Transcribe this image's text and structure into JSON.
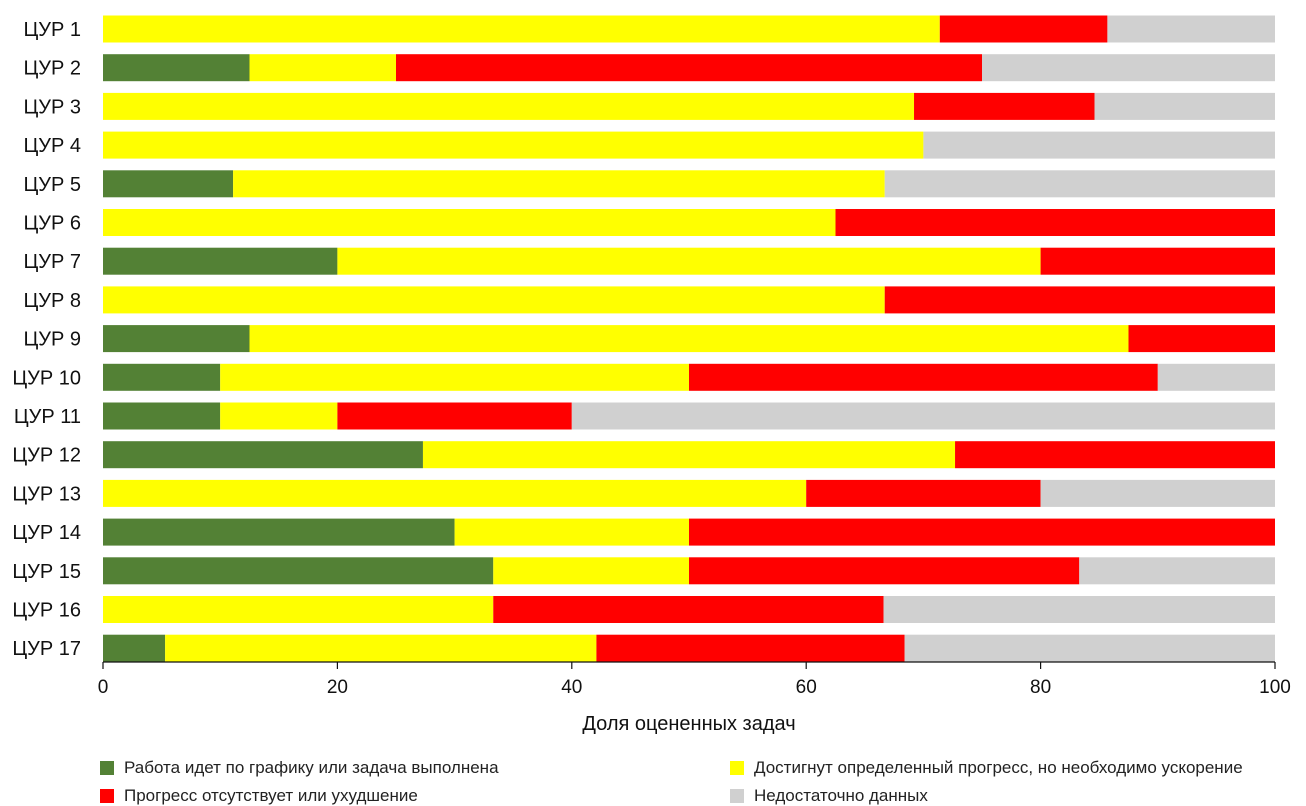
{
  "chart_data": {
    "type": "bar",
    "orientation": "horizontal",
    "stacked": true,
    "categories": [
      "ЦУР 1",
      "ЦУР 2",
      "ЦУР 3",
      "ЦУР 4",
      "ЦУР 5",
      "ЦУР 6",
      "ЦУР 7",
      "ЦУР 8",
      "ЦУР 9",
      "ЦУР 10",
      "ЦУР 11",
      "ЦУР 12",
      "ЦУР 13",
      "ЦУР 14",
      "ЦУР 15",
      "ЦУР 16",
      "ЦУР 17"
    ],
    "series": [
      {
        "name": "Работа идет по графику или задача выполнена",
        "color": "#538135",
        "values": [
          0,
          12.5,
          0,
          0,
          11.1,
          0,
          20,
          0,
          12.5,
          10,
          10,
          27.3,
          0,
          30,
          33.3,
          0,
          5.3
        ]
      },
      {
        "name": "Достигнут определенный прогресс, но необходимо ускорение",
        "color": "#ffff00",
        "values": [
          71.4,
          12.5,
          69.2,
          70,
          55.6,
          62.5,
          60,
          66.7,
          75,
          40,
          10,
          45.4,
          60,
          20,
          16.7,
          33.3,
          36.8
        ]
      },
      {
        "name": "Прогресс отсутствует или ухудшение",
        "color": "#ff0000",
        "values": [
          14.3,
          50,
          15.4,
          0,
          0,
          37.5,
          20,
          33.3,
          12.5,
          40,
          20,
          27.3,
          20,
          50,
          33.3,
          33.3,
          26.3
        ]
      },
      {
        "name": "Недостаточно данных",
        "color": "#d0d0d0",
        "values": [
          14.3,
          25,
          15.4,
          30,
          33.3,
          0,
          0,
          0,
          0,
          10,
          60,
          0,
          20,
          0,
          16.7,
          33.4,
          31.6
        ]
      }
    ],
    "xlabel": "Доля оцененных задач",
    "xlim": [
      0,
      100
    ],
    "xticks": [
      0,
      20,
      40,
      60,
      80,
      100
    ],
    "grid": false,
    "legend_position": "bottom"
  }
}
